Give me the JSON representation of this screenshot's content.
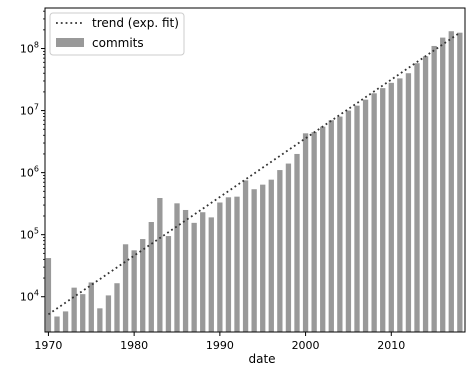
{
  "chart_data": {
    "type": "bar",
    "xlabel": "date",
    "ylabel": "",
    "x_scale": "linear",
    "y_scale": "log",
    "xlim": [
      1969.6,
      2018.6
    ],
    "ylim": [
      2700,
      450000000
    ],
    "x_ticks": [
      1970,
      1980,
      1990,
      2000,
      2010
    ],
    "y_ticks": [
      {
        "value": 10000,
        "base": "10",
        "exp": "4"
      },
      {
        "value": 100000,
        "base": "10",
        "exp": "5"
      },
      {
        "value": 1000000,
        "base": "10",
        "exp": "6"
      },
      {
        "value": 10000000,
        "base": "10",
        "exp": "7"
      },
      {
        "value": 100000000,
        "base": "10",
        "exp": "8"
      }
    ],
    "grid": false,
    "legend_position": "upper-left",
    "series": [
      {
        "name": "commits",
        "kind": "bar",
        "color": "#999999",
        "x": [
          1970,
          1971,
          1972,
          1973,
          1974,
          1975,
          1976,
          1977,
          1978,
          1979,
          1980,
          1981,
          1982,
          1983,
          1984,
          1985,
          1986,
          1987,
          1988,
          1989,
          1990,
          1991,
          1992,
          1993,
          1994,
          1995,
          1996,
          1997,
          1998,
          1999,
          2000,
          2001,
          2002,
          2003,
          2004,
          2005,
          2006,
          2007,
          2008,
          2009,
          2010,
          2011,
          2012,
          2013,
          2014,
          2015,
          2016,
          2017,
          2018
        ],
        "values": [
          42000,
          4800,
          5800,
          14000,
          11000,
          17000,
          6500,
          10500,
          16500,
          70000,
          56000,
          85000,
          160000,
          390000,
          95000,
          320000,
          250000,
          155000,
          230000,
          190000,
          330000,
          400000,
          410000,
          750000,
          540000,
          640000,
          770000,
          1100000,
          1400000,
          2000000,
          4300000,
          4500000,
          5500000,
          7000000,
          8000000,
          10000000,
          12000000,
          15000000,
          19000000,
          23000000,
          28000000,
          33000000,
          40000000,
          58000000,
          75000000,
          110000000,
          150000000,
          190000000,
          180000000
        ]
      },
      {
        "name": "trend (exp. fit)",
        "kind": "line",
        "style": "dotted",
        "color": "#333333",
        "x": [
          1970,
          2018
        ],
        "values": [
          5200,
          180000000
        ]
      }
    ]
  }
}
